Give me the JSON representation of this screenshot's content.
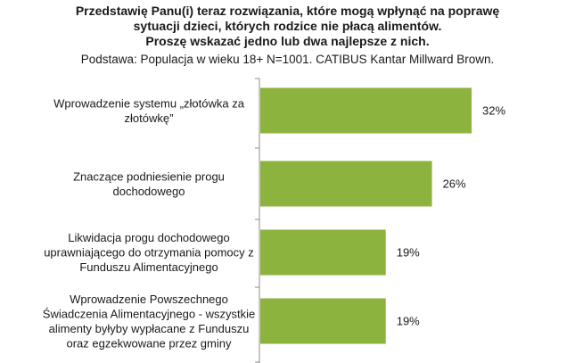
{
  "header": {
    "title_lines": [
      "Przedstawię Panu(i) teraz rozwiązania, które mogą wpłynąć na poprawę",
      "sytuacji dzieci, których rodzice nie płacą alimentów.",
      "Proszę wskazać jedno lub dwa najlepsze z nich."
    ],
    "subtitle": "Podstawa: Populacja w wieku 18+ N=1001. CATIBUS Kantar Millward Brown."
  },
  "chart_data": {
    "type": "bar",
    "orientation": "horizontal",
    "categories": [
      [
        "Wprowadzenie systemu „złotówka za",
        "złotówkę”"
      ],
      [
        "Znaczące podniesienie progu",
        "dochodowego"
      ],
      [
        "Likwidacja progu dochodowego",
        "uprawniającego do otrzymania pomocy z",
        "Funduszu Alimentacyjnego"
      ],
      [
        "Wprowadzenie Powszechnego",
        "Świadczenia Alimentacyjnego - wszystkie",
        "alimenty byłyby wypłacane z Funduszu",
        "oraz egzekwowane przez gminy"
      ]
    ],
    "values": [
      32,
      26,
      19,
      19
    ],
    "value_labels": [
      "32%",
      "26%",
      "19%",
      "19%"
    ],
    "bar_color": "#8db33f",
    "grid": false,
    "legend": "none"
  }
}
